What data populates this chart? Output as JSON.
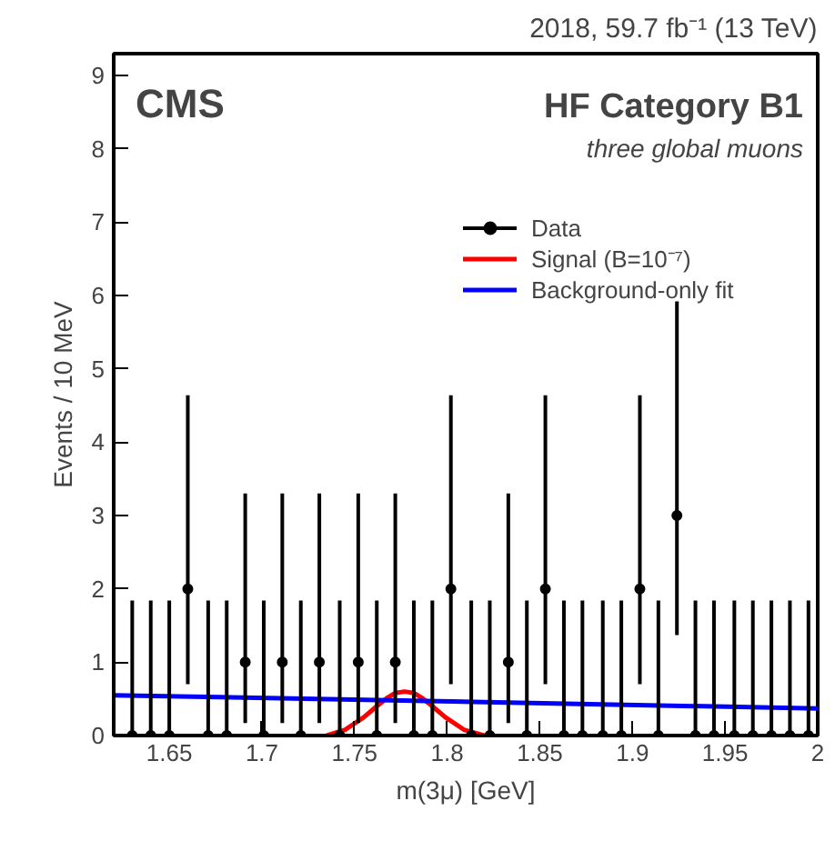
{
  "chart_data": {
    "type": "scatter",
    "title": "2018, 59.7 fb⁻¹ (13 TeV)",
    "xlabel": "m(3μ) [GeV]",
    "ylabel": "Events / 10 MeV",
    "annotations": [
      "CMS",
      "HF Category B1",
      "three global muons"
    ],
    "xlim": [
      1.62,
      2.0
    ],
    "ylim": [
      0,
      9.3
    ],
    "xticks": [
      1.65,
      1.7,
      1.75,
      1.8,
      1.85,
      1.9,
      1.95,
      2
    ],
    "yticks": [
      0,
      1,
      2,
      3,
      4,
      5,
      6,
      7,
      8,
      9
    ],
    "grid": false,
    "legend": "top right",
    "series": [
      {
        "name": "Data",
        "marker": "circle",
        "color": "#000000",
        "x": [
          1.63,
          1.64,
          1.65,
          1.66,
          1.671,
          1.681,
          1.691,
          1.701,
          1.711,
          1.721,
          1.731,
          1.742,
          1.752,
          1.762,
          1.772,
          1.782,
          1.792,
          1.802,
          1.813,
          1.823,
          1.833,
          1.843,
          1.853,
          1.863,
          1.873,
          1.884,
          1.894,
          1.904,
          1.914,
          1.924,
          1.934,
          1.944,
          1.955,
          1.965,
          1.975,
          1.985,
          1.995
        ],
        "values": [
          0,
          0,
          0,
          2,
          0,
          0,
          1,
          0,
          1,
          0,
          1,
          0,
          1,
          0,
          1,
          0,
          0,
          2,
          0,
          0,
          1,
          0,
          2,
          0,
          0,
          0,
          0,
          2,
          0,
          3,
          0,
          0,
          0,
          0,
          0,
          0,
          0
        ],
        "errors": [
          [
            0,
            1.84
          ],
          [
            0,
            1.84
          ],
          [
            0,
            1.84
          ],
          [
            0.7,
            4.64
          ],
          [
            0,
            1.84
          ],
          [
            0,
            1.84
          ],
          [
            0.17,
            3.3
          ],
          [
            0,
            1.84
          ],
          [
            0.17,
            3.3
          ],
          [
            0,
            1.84
          ],
          [
            0.17,
            3.3
          ],
          [
            0,
            1.84
          ],
          [
            0.17,
            3.3
          ],
          [
            0,
            1.84
          ],
          [
            0.17,
            3.3
          ],
          [
            0,
            1.84
          ],
          [
            0,
            1.84
          ],
          [
            0.7,
            4.64
          ],
          [
            0,
            1.84
          ],
          [
            0,
            1.84
          ],
          [
            0.17,
            3.3
          ],
          [
            0,
            1.84
          ],
          [
            0.7,
            4.64
          ],
          [
            0,
            1.84
          ],
          [
            0,
            1.84
          ],
          [
            0,
            1.84
          ],
          [
            0,
            1.84
          ],
          [
            0.7,
            4.64
          ],
          [
            0,
            1.84
          ],
          [
            1.37,
            5.92
          ],
          [
            0,
            1.84
          ],
          [
            0,
            1.84
          ],
          [
            0,
            1.84
          ],
          [
            0,
            1.84
          ],
          [
            0,
            1.84
          ],
          [
            0,
            1.84
          ],
          [
            0,
            1.84
          ]
        ]
      },
      {
        "name": "Signal (B=10⁻⁷)",
        "type": "line",
        "color": "#ff0000",
        "line_style": "solid",
        "x": [
          1.735,
          1.745,
          1.755,
          1.762,
          1.768,
          1.772,
          1.777,
          1.782,
          1.786,
          1.792,
          1.799,
          1.809,
          1.82
        ],
        "values": [
          0.0,
          0.08,
          0.25,
          0.4,
          0.52,
          0.58,
          0.6,
          0.58,
          0.52,
          0.4,
          0.25,
          0.08,
          0.0
        ]
      },
      {
        "name": "Background-only fit",
        "type": "line",
        "color": "#0000ff",
        "line_style": "solid",
        "x": [
          1.62,
          2.0
        ],
        "values": [
          0.55,
          0.37
        ]
      }
    ]
  }
}
